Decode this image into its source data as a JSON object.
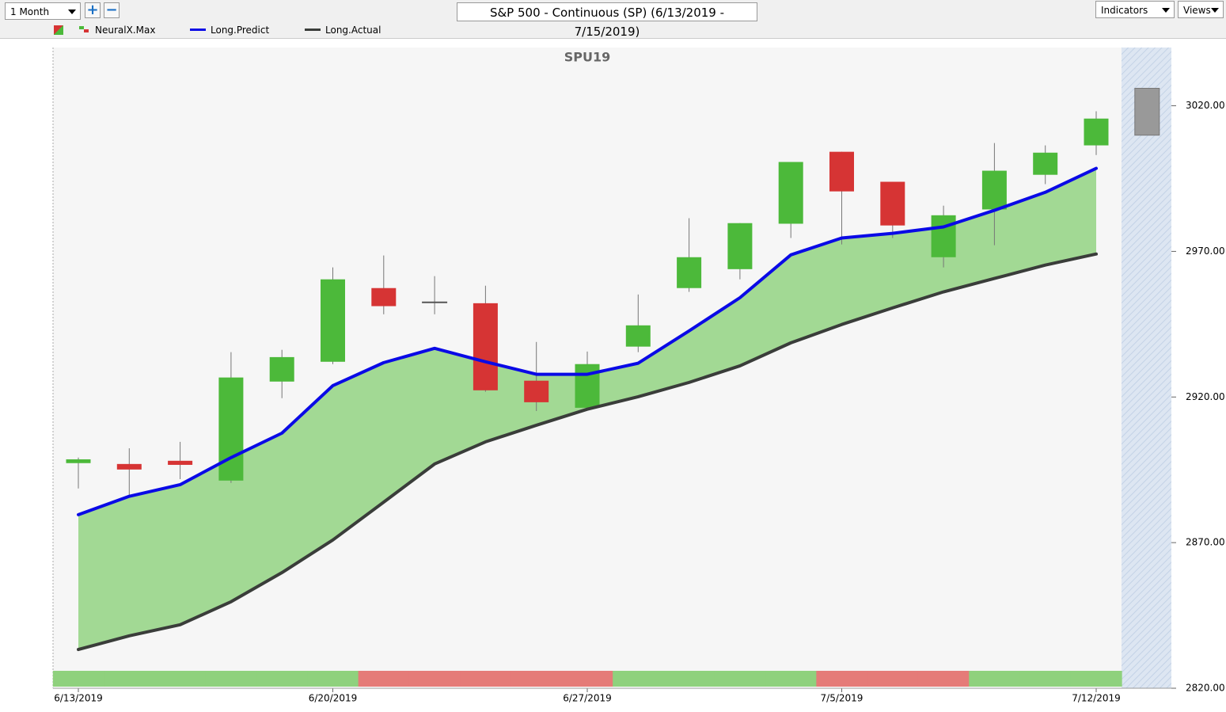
{
  "toolbar": {
    "period": "1 Month",
    "window_title": "S&P 500 - Continuous (SP) (6/13/2019 - 7/15/2019)",
    "indicators": "Indicators",
    "views": "Views"
  },
  "chart_data": {
    "type": "candlestick",
    "title": "SPU19",
    "categories": [
      "6/13/2019",
      null,
      null,
      null,
      null,
      "6/20/2019",
      null,
      null,
      null,
      null,
      "6/27/2019",
      null,
      null,
      null,
      null,
      "7/5/2019",
      null,
      null,
      null,
      null,
      "7/12/2019"
    ],
    "candles": {
      "up_color": "#4cb93a",
      "down_color": "#d63434",
      "open": [
        2897.3,
        2897.0,
        2898.1,
        2891.3,
        2925.3,
        2932.1,
        2957.4,
        2952.5,
        2952.2,
        2925.6,
        2916.3,
        2937.3,
        2957.4,
        2963.9,
        2979.5,
        3004.2,
        2993.9,
        2968.0,
        2984.4,
        2996.3,
        3006.4
      ],
      "high": [
        2899.2,
        2902.4,
        2904.6,
        2935.4,
        2936.2,
        2964.5,
        2968.6,
        2961.5,
        2958.2,
        2938.9,
        2935.6,
        2955.2,
        2981.4,
        2979.7,
        3000.7,
        3004.2,
        2993.9,
        2985.7,
        3007.2,
        3006.4,
        3018.1
      ],
      "low": [
        2888.6,
        2885.9,
        2891.8,
        2890.5,
        2919.6,
        2931.3,
        2948.4,
        2948.4,
        2921.8,
        2915.2,
        2915.8,
        2935.4,
        2956.1,
        2960.4,
        2974.6,
        2972.4,
        2974.6,
        2964.5,
        2972.1,
        2993.1,
        3003.1
      ],
      "close": [
        2898.6,
        2895.1,
        2896.7,
        2926.7,
        2933.7,
        2960.4,
        2951.2,
        2952.5,
        2922.3,
        2918.2,
        2931.3,
        2944.6,
        2968.0,
        2979.7,
        3000.7,
        2990.6,
        2978.9,
        2982.4,
        2997.7,
        3003.9,
        3015.6
      ]
    },
    "forecast": {
      "high": 3026.0,
      "low": 3009.9,
      "color": "#999999"
    },
    "series": [
      {
        "name": "Long.Predict",
        "color": "#0a0ae6",
        "values": [
          2879.6,
          2885.9,
          2889.9,
          2899.2,
          2907.6,
          2923.9,
          2931.8,
          2936.7,
          2932.1,
          2927.8,
          2927.8,
          2931.6,
          2942.7,
          2954.1,
          2968.8,
          2974.6,
          2976.2,
          2978.4,
          2984.1,
          2990.3,
          2998.5
        ]
      },
      {
        "name": "Long.Actual",
        "color": "#3a3d3a",
        "values": [
          2833.3,
          2838.0,
          2841.8,
          2849.7,
          2859.7,
          2870.9,
          2883.9,
          2897.0,
          2904.6,
          2910.3,
          2915.8,
          2920.1,
          2925.0,
          2930.7,
          2938.6,
          2944.9,
          2950.6,
          2956.1,
          2960.7,
          2965.3,
          2969.1
        ]
      }
    ],
    "area_color": "#a2d994",
    "signal": {
      "name": "NeuralX.Max",
      "colors": [
        "#8fd17d",
        "#8fd17d",
        "#8fd17d",
        "#8fd17d",
        "#8fd17d",
        "#8fd17d",
        "#e57b78",
        "#e57b78",
        "#e57b78",
        "#e57b78",
        "#e57b78",
        "#8fd17d",
        "#8fd17d",
        "#8fd17d",
        "#8fd17d",
        "#e57b78",
        "#e57b78",
        "#e57b78",
        "#8fd17d",
        "#8fd17d",
        "#8fd17d"
      ]
    },
    "ylim": [
      2820,
      3040
    ],
    "yticks": [
      {
        "value": 2820,
        "label": "2820.00"
      },
      {
        "value": 2870,
        "label": "2870.00"
      },
      {
        "value": 2920,
        "label": "2920.00"
      },
      {
        "value": 2970,
        "label": "2970.00"
      },
      {
        "value": 3020,
        "label": "3020.00"
      }
    ]
  }
}
